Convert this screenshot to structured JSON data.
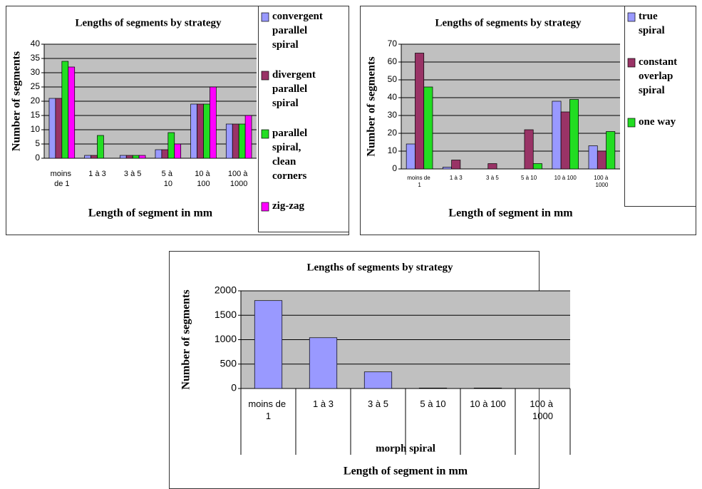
{
  "chart_data": [
    {
      "type": "bar",
      "title": "Lengths of segments by strategy",
      "y_label": "Number of segments",
      "x_label": "Length of segment in mm",
      "categories": [
        "moins de 1",
        "1 à 3",
        "3 à 5",
        "5 à 10",
        "10 à 100",
        "100 à 1000"
      ],
      "series": [
        {
          "name": "convergent parallel spiral",
          "color": "#9999ff",
          "values": [
            21,
            1,
            1,
            3,
            19,
            12
          ]
        },
        {
          "name": "divergent parallel spiral",
          "color": "#993366",
          "values": [
            21,
            1,
            1,
            3,
            19,
            12
          ]
        },
        {
          "name": "parallel spiral, clean corners",
          "color": "#22dd22",
          "values": [
            34,
            8,
            1,
            9,
            19,
            12
          ]
        },
        {
          "name": "zig-zag",
          "color": "#ff00ff",
          "values": [
            32,
            0,
            1,
            5,
            25,
            15
          ]
        }
      ],
      "ylim": [
        0,
        40
      ],
      "yticks": [
        0,
        5,
        10,
        15,
        20,
        25,
        30,
        35,
        40
      ],
      "grid": true,
      "legend": "right"
    },
    {
      "type": "bar",
      "title": "Lengths of segments by strategy",
      "y_label": "Number of segments",
      "x_label": "Length of segment in mm",
      "categories": [
        "moins de 1",
        "1 à 3",
        "3 à 5",
        "5 à 10",
        "10 à 100",
        "100 à 1000"
      ],
      "series": [
        {
          "name": "true spiral",
          "color": "#9999ff",
          "values": [
            14,
            1,
            0,
            0,
            38,
            13
          ]
        },
        {
          "name": "constant overlap spiral",
          "color": "#993366",
          "values": [
            65,
            5,
            3,
            22,
            32,
            10
          ]
        },
        {
          "name": "one way",
          "color": "#22dd22",
          "values": [
            46,
            0,
            0,
            3,
            39,
            21
          ]
        }
      ],
      "ylim": [
        0,
        70
      ],
      "yticks": [
        0,
        10,
        20,
        30,
        40,
        50,
        60,
        70
      ],
      "grid": true,
      "legend": "right"
    },
    {
      "type": "bar",
      "title": "Lengths of segments by strategy",
      "y_label": "Number of segments",
      "x_label": "Length of segment in mm",
      "group_label": "morph spiral",
      "categories": [
        "moins de 1",
        "1 à 3",
        "3 à 5",
        "5 à 10",
        "10 à 100",
        "100 à 1000"
      ],
      "series": [
        {
          "name": "morph spiral",
          "color": "#9999ff",
          "values": [
            1800,
            1040,
            340,
            10,
            10,
            0
          ]
        }
      ],
      "ylim": [
        0,
        2000
      ],
      "yticks": [
        0,
        500,
        1000,
        1500,
        2000
      ],
      "grid": true
    }
  ]
}
